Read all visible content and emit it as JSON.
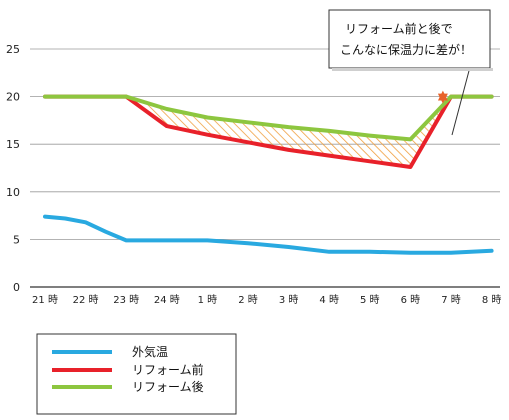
{
  "chart_data": {
    "type": "line",
    "x": [
      "21 時",
      "22 時",
      "23 時",
      "24 時",
      "1 時",
      "2 時",
      "3 時",
      "4 時",
      "5 時",
      "6 時",
      "7 時",
      "8 時"
    ],
    "ylim": [
      0,
      25
    ],
    "yticks": [
      0,
      5,
      10,
      15,
      20,
      25
    ],
    "grid": true,
    "series": [
      {
        "name": "外気温",
        "color": "#29a9e0",
        "points": [
          [
            0,
            7.4
          ],
          [
            0.5,
            7.2
          ],
          [
            1,
            6.8
          ],
          [
            1.5,
            5.8
          ],
          [
            2,
            4.9
          ],
          [
            3,
            4.9
          ],
          [
            4,
            4.9
          ],
          [
            5,
            4.6
          ],
          [
            6,
            4.2
          ],
          [
            7,
            3.7
          ],
          [
            8,
            3.7
          ],
          [
            9,
            3.6
          ],
          [
            10,
            3.6
          ],
          [
            11,
            3.8
          ]
        ]
      },
      {
        "name": "リフォーム前",
        "color": "#e8212a",
        "points": [
          [
            0,
            20
          ],
          [
            2,
            20
          ],
          [
            3,
            16.9
          ],
          [
            4,
            16.0
          ],
          [
            5,
            15.2
          ],
          [
            6,
            14.4
          ],
          [
            7,
            13.8
          ],
          [
            8,
            13.2
          ],
          [
            9,
            12.6
          ],
          [
            10,
            20
          ],
          [
            11,
            20
          ]
        ]
      },
      {
        "name": "リフォーム後",
        "color": "#8dc63f",
        "points": [
          [
            0,
            20
          ],
          [
            2,
            20
          ],
          [
            3,
            18.7
          ],
          [
            4,
            17.8
          ],
          [
            5,
            17.3
          ],
          [
            6,
            16.8
          ],
          [
            7,
            16.4
          ],
          [
            8,
            15.9
          ],
          [
            9,
            15.5
          ],
          [
            10,
            20
          ],
          [
            11,
            20
          ]
        ]
      }
    ],
    "annotation": {
      "lines": [
        "リフォーム前と後で",
        "こんなに保温力に差が！"
      ]
    },
    "legend": {
      "placement": "bottom-left",
      "items": [
        "外気温",
        "リフォーム前",
        "リフォーム後"
      ]
    },
    "colors": {
      "hatch": "#f0a040",
      "arrow": "#e8632a",
      "grid": "#9a9a9a"
    }
  }
}
